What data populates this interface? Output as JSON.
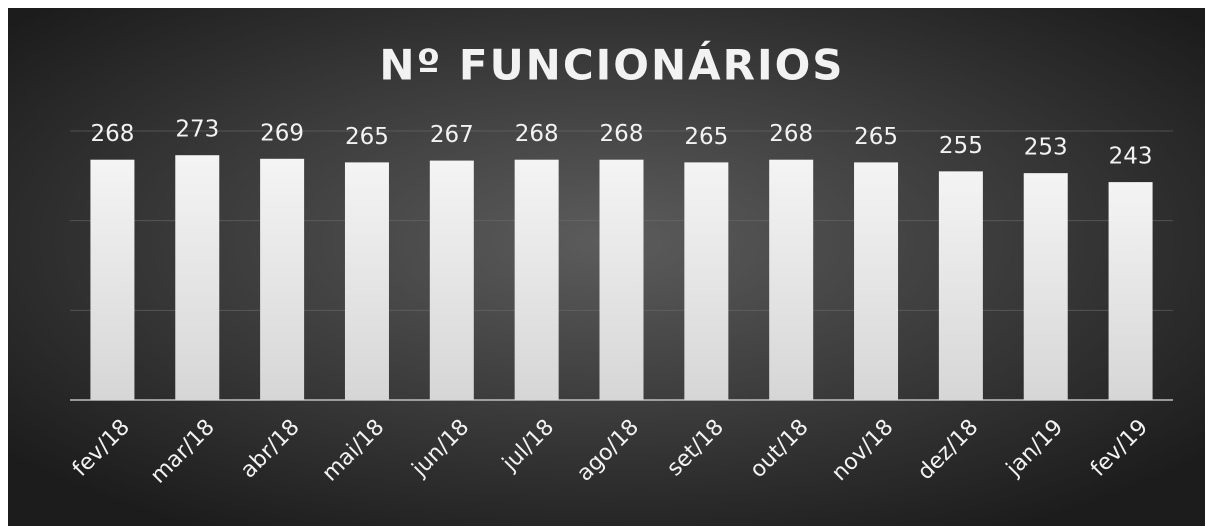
{
  "chart_data": {
    "type": "bar",
    "title": "Nº FUNCIONÁRIOS",
    "categories": [
      "fev/18",
      "mar/18",
      "abr/18",
      "mai/18",
      "jun/18",
      "jul/18",
      "ago/18",
      "set/18",
      "out/18",
      "nov/18",
      "dez/18",
      "jan/19",
      "fev/19"
    ],
    "values": [
      268,
      273,
      269,
      265,
      267,
      268,
      268,
      265,
      268,
      265,
      255,
      253,
      243
    ],
    "color": "#e4e4e4",
    "ylim": [
      0,
      300
    ],
    "yticks": [
      0,
      100,
      200,
      300
    ],
    "grid": true
  }
}
